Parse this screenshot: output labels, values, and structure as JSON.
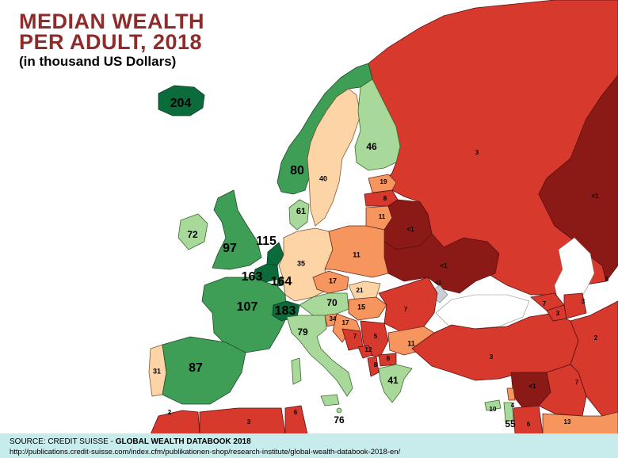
{
  "title_line1": "MEDIAN WEALTH",
  "title_line2": "PER ADULT, 2018",
  "subtitle": "(in thousand US Dollars)",
  "source_prefix": "SOURCE: CREDIT SUISSE - ",
  "source_name": "GLOBAL WEALTH DATABOOK 2018",
  "source_url": "http://publications.credit-suisse.com/index.cfm/publikationen-shop/research-institute/global-wealth-databook-2018-en/",
  "colors": {
    "title": "#8e2b2b",
    "sea": "#ffffff",
    "footer_bg": "#c8ecec",
    "darkgreen": "#0b6b3a",
    "green": "#3e9e55",
    "lightgreen": "#a8d99a",
    "peach": "#fdd4a6",
    "orange": "#f7955f",
    "red": "#d73a2c",
    "darkred": "#8b1a16",
    "grey": "#c9cfd4"
  },
  "labels": {
    "iceland": "204",
    "norway": "80",
    "sweden": "40",
    "finland": "46",
    "estonia": "19",
    "latvia": "8",
    "lithuania": "11",
    "belarus": "<1",
    "russia": "3",
    "denmark": "61",
    "ireland": "72",
    "uk": "97",
    "netherlands": "115",
    "belgium": "163",
    "luxembourg": "164",
    "germany": "35",
    "poland": "11",
    "ukraine": "<1",
    "france": "107",
    "switzerland": "183",
    "czechia": "17",
    "slovakia": "21",
    "austria": "70",
    "hungary": "15",
    "romania": "7",
    "moldova": "<1",
    "slovenia": "34",
    "croatia": "17",
    "bosnia": "7",
    "serbia": "5",
    "montenegro": "12",
    "albania": "8",
    "macedonia": "6",
    "bulgaria": "11",
    "italy": "79",
    "portugal": "31",
    "spain": "87",
    "greece": "41",
    "turkey": "3",
    "georgia": "7",
    "armenia": "3",
    "azerbaijan": "3",
    "iran": "2",
    "kazakhstan": "<1",
    "kazakh_small": "5",
    "syria": "<1",
    "iraq": "7",
    "lebanon": "10",
    "israel": "4",
    "jordan": "6",
    "saudi": "13",
    "malta": "76",
    "cyprus": "55",
    "morocco": "2",
    "algeria": "3",
    "tunisia": "6"
  }
}
